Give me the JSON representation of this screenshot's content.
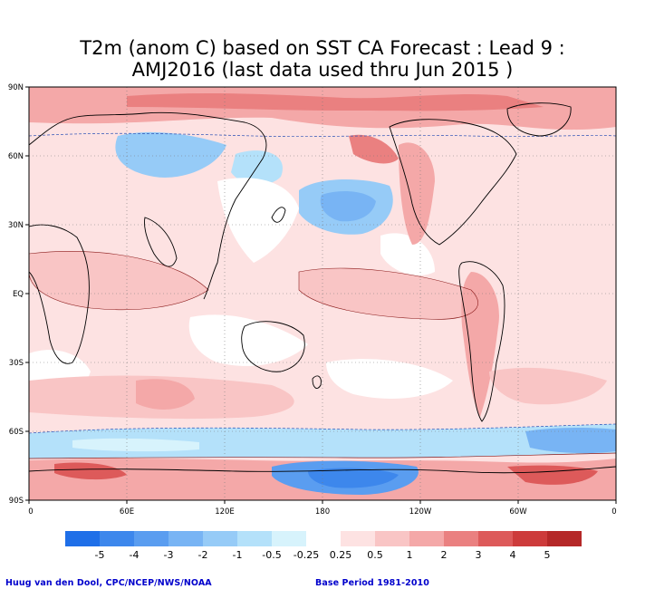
{
  "title": {
    "line1": "T2m (anom C) based on SST CA Forecast : Lead 9 :",
    "line2": "AMJ2016 (last data used thru Jun 2015 )"
  },
  "map": {
    "lat_labels": [
      "90N",
      "60N",
      "30N",
      "EQ",
      "30S",
      "60S",
      "90S"
    ],
    "lon_labels": [
      "0",
      "60E",
      "120E",
      "180",
      "120W",
      "60W",
      "0"
    ],
    "projection": "cylindrical-equidistant",
    "center_longitude": "180",
    "gridlines": "dotted"
  },
  "colorbar": {
    "labels": [
      "-5",
      "-4",
      "-3",
      "-2",
      "-1",
      "-0.5",
      "-0.25",
      "0.25",
      "0.5",
      "1",
      "2",
      "3",
      "4",
      "5"
    ],
    "colors": [
      "#1f6fe8",
      "#3d87ec",
      "#5a9df0",
      "#78b4f4",
      "#96cbf7",
      "#b4e1fa",
      "#d7f3fc",
      "#ffffff",
      "#fde2e2",
      "#f9c5c5",
      "#f4a8a8",
      "#ea8080",
      "#dd5a5a",
      "#cd3b3b",
      "#b52828"
    ]
  },
  "credits": {
    "left": "Huug van den Dool, CPC/NCEP/NWS/NOAA",
    "right": "Base Period 1981-2010"
  }
}
